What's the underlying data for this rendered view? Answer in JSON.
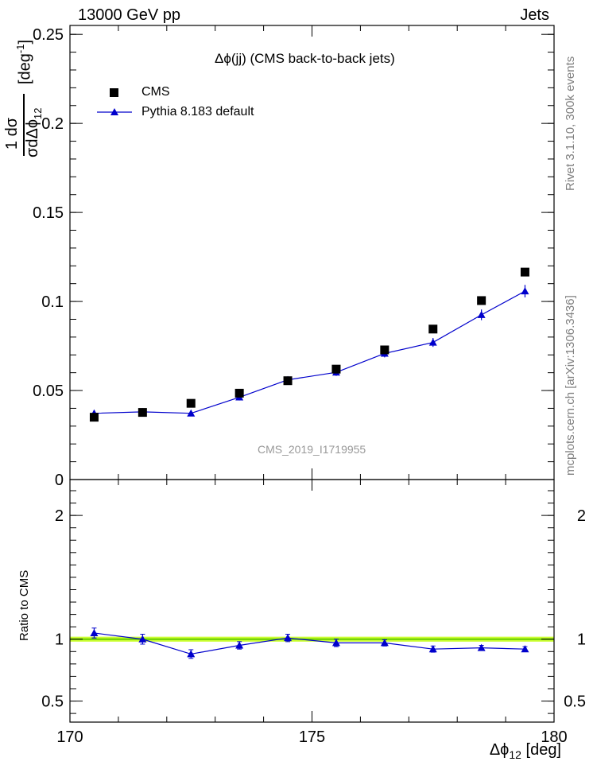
{
  "header": {
    "left": "13000 GeV pp",
    "right": "Jets"
  },
  "side_labels": {
    "top": "Rivet 3.1.10,  300k events",
    "bottom": "mcplots.cern.ch [arXiv:1306.3436]"
  },
  "watermark": "CMS_2019_I1719955",
  "colors": {
    "cms": "#000000",
    "pythia": "#0000cc",
    "band_fill": "#ccff33",
    "band_line": "#66cc00",
    "watermark": "#999999"
  },
  "chart_data": [
    {
      "type": "scatter",
      "panel": "main",
      "title": "Δϕ(jj) (CMS back-to-back jets)",
      "ylabel": "1/σ dσ/dΔϕ12 [deg⁻¹]",
      "ylabel_parts": {
        "num": "1",
        "num2": "dσ",
        "den": "σ",
        "den2": "dΔϕ",
        "sub": "12",
        "unit_open": "[deg",
        "unit_exp": "-1",
        "unit_close": "]"
      },
      "xlim": [
        170,
        180
      ],
      "ylim": [
        0,
        0.255
      ],
      "y_ticks": [
        0,
        0.05,
        0.1,
        0.15,
        0.2,
        0.25
      ],
      "y_tick_labels": [
        "0",
        "0.05",
        "0.1",
        "0.15",
        "0.2",
        "0.25"
      ],
      "legend_position": "top-left",
      "series": [
        {
          "name": "CMS",
          "marker": "square",
          "x": [
            170.5,
            171.5,
            172.5,
            173.5,
            174.5,
            175.5,
            176.5,
            177.5,
            178.5,
            179.4
          ],
          "y": [
            0.035,
            0.0377,
            0.0428,
            0.0485,
            0.0555,
            0.062,
            0.0728,
            0.0845,
            0.1005,
            0.1165
          ]
        },
        {
          "name": "Pythia 8.183 default",
          "marker": "triangle",
          "line": true,
          "x": [
            170.5,
            171.5,
            172.5,
            173.5,
            174.5,
            175.5,
            176.5,
            177.5,
            178.5,
            179.4
          ],
          "y": [
            0.0372,
            0.038,
            0.0372,
            0.0462,
            0.056,
            0.0602,
            0.0708,
            0.077,
            0.0925,
            0.1058
          ],
          "yerr": [
            0.0018,
            0.0012,
            0.0015,
            0.0018,
            0.0018,
            0.002,
            0.0022,
            0.0025,
            0.003,
            0.0035
          ]
        }
      ]
    },
    {
      "type": "line",
      "panel": "ratio",
      "ylabel": "Ratio to CMS",
      "xlabel": "Δϕ12 [deg]",
      "xlabel_parts": {
        "sym": "Δϕ",
        "sub": "12",
        "unit": " [deg]"
      },
      "xlim": [
        170,
        180
      ],
      "ylim": [
        0.33,
        2.29
      ],
      "x_ticks": [
        170,
        175,
        180
      ],
      "x_tick_labels": [
        "170",
        "175",
        "180"
      ],
      "y_ticks": [
        0.5,
        1,
        2
      ],
      "y_tick_labels": [
        "0.5",
        "1",
        "2"
      ],
      "reference_band": [
        0.98,
        1.02
      ],
      "series": [
        {
          "name": "Pythia 8.183 default",
          "x": [
            170.5,
            171.5,
            172.5,
            173.5,
            174.5,
            175.5,
            176.5,
            177.5,
            178.5,
            179.4
          ],
          "y": [
            1.05,
            1.0,
            0.88,
            0.95,
            1.01,
            0.97,
            0.97,
            0.92,
            0.93,
            0.92
          ],
          "yerr": [
            0.04,
            0.04,
            0.035,
            0.03,
            0.03,
            0.03,
            0.025,
            0.025,
            0.02,
            0.02
          ]
        }
      ]
    }
  ]
}
